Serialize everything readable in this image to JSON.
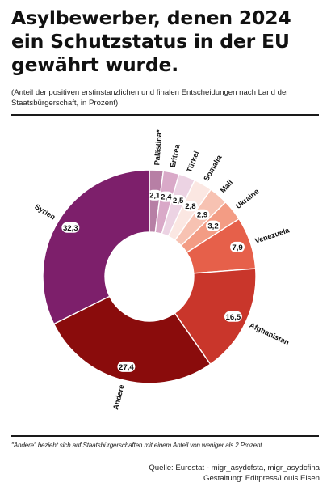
{
  "title": "Asylbewerber, denen 2024 ein Schutzstatus in der EU gewährt wurde.",
  "subtitle": "(Anteil der positiven erstinstanzlichen und finalen Entscheidungen nach Land der Staatsbürgerschaft, in Prozent)",
  "footnote": "\"Andere\" bezieht sich auf Staatsbürgerschaften mit einem Anteil von weniger als 2 Prozent.",
  "source": "Quelle: Eurostat - migr_asydcfsta, migr_asydcfina",
  "design": "Gestaltung: Editpress/Louis Elsen",
  "chart_data": {
    "type": "pie",
    "donut": true,
    "unit": "%",
    "slices": [
      {
        "label": "Palästina*",
        "value": 2.1,
        "display": "2,1",
        "color": "#b77fa5"
      },
      {
        "label": "Eritrea",
        "value": 2.4,
        "display": "2,4",
        "color": "#d9a9c8"
      },
      {
        "label": "Türkei",
        "value": 2.5,
        "display": "2,5",
        "color": "#ecd3e3"
      },
      {
        "label": "Somalia",
        "value": 2.8,
        "display": "2,8",
        "color": "#fbe7e2"
      },
      {
        "label": "Mali",
        "value": 2.9,
        "display": "2,9",
        "color": "#f7c2b2"
      },
      {
        "label": "Ukraine",
        "value": 3.2,
        "display": "3,2",
        "color": "#f39c84"
      },
      {
        "label": "Venezuela",
        "value": 7.9,
        "display": "7,9",
        "color": "#e6604a"
      },
      {
        "label": "Afghanistan",
        "value": 16.5,
        "display": "16,5",
        "color": "#c9362b"
      },
      {
        "label": "Andere",
        "value": 27.4,
        "display": "27,4",
        "color": "#8a0c0c"
      },
      {
        "label": "Syrien",
        "value": 32.3,
        "display": "32,3",
        "color": "#7d1f6b"
      }
    ]
  }
}
